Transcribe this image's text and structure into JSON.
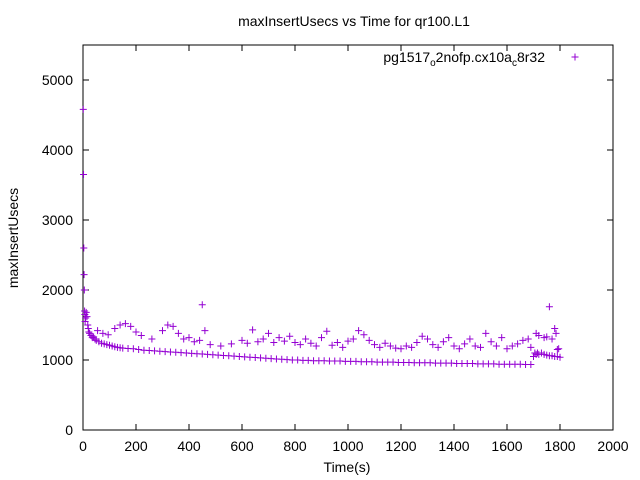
{
  "chart_data": {
    "type": "scatter",
    "title": "maxInsertUsecs vs Time for qr100.L1",
    "xlabel": "Time(s)",
    "ylabel": "maxInsertUsecs",
    "xlim": [
      0,
      2000
    ],
    "ylim": [
      0,
      5500
    ],
    "xticks": [
      0,
      200,
      400,
      600,
      800,
      1000,
      1200,
      1400,
      1600,
      1800,
      2000
    ],
    "yticks": [
      0,
      1000,
      2000,
      3000,
      4000,
      5000
    ],
    "grid": false,
    "legend_position": "top-right",
    "marker": "+",
    "series": [
      {
        "name_parts": {
          "base": "pg1517",
          "sub1": "o",
          "mid": "2nofp.cx10a",
          "sub2": "c",
          "tail": "8r32"
        },
        "color": "#9400d3",
        "points": [
          [
            1,
            4580
          ],
          [
            2,
            3650
          ],
          [
            3,
            2600
          ],
          [
            4,
            2220
          ],
          [
            5,
            2000
          ],
          [
            6,
            1700
          ],
          [
            7,
            1650
          ],
          [
            8,
            1550
          ],
          [
            10,
            1600
          ],
          [
            12,
            1680
          ],
          [
            15,
            1620
          ],
          [
            18,
            1500
          ],
          [
            20,
            1450
          ],
          [
            22,
            1400
          ],
          [
            25,
            1380
          ],
          [
            30,
            1350
          ],
          [
            35,
            1320
          ],
          [
            40,
            1330
          ],
          [
            45,
            1300
          ],
          [
            50,
            1280
          ],
          [
            60,
            1260
          ],
          [
            70,
            1240
          ],
          [
            80,
            1230
          ],
          [
            90,
            1220
          ],
          [
            100,
            1210
          ],
          [
            110,
            1200
          ],
          [
            120,
            1190
          ],
          [
            130,
            1180
          ],
          [
            140,
            1175
          ],
          [
            150,
            1170
          ],
          [
            55,
            1420
          ],
          [
            75,
            1380
          ],
          [
            95,
            1360
          ],
          [
            120,
            1450
          ],
          [
            140,
            1500
          ],
          [
            160,
            1520
          ],
          [
            180,
            1480
          ],
          [
            200,
            1400
          ],
          [
            220,
            1350
          ],
          [
            260,
            1300
          ],
          [
            170,
            1165
          ],
          [
            190,
            1160
          ],
          [
            210,
            1150
          ],
          [
            230,
            1140
          ],
          [
            250,
            1135
          ],
          [
            270,
            1130
          ],
          [
            290,
            1125
          ],
          [
            310,
            1120
          ],
          [
            330,
            1115
          ],
          [
            350,
            1110
          ],
          [
            300,
            1420
          ],
          [
            320,
            1500
          ],
          [
            340,
            1480
          ],
          [
            360,
            1380
          ],
          [
            380,
            1300
          ],
          [
            400,
            1320
          ],
          [
            420,
            1260
          ],
          [
            440,
            1280
          ],
          [
            450,
            1790
          ],
          [
            460,
            1420
          ],
          [
            370,
            1105
          ],
          [
            390,
            1100
          ],
          [
            410,
            1095
          ],
          [
            430,
            1090
          ],
          [
            450,
            1085
          ],
          [
            470,
            1080
          ],
          [
            490,
            1075
          ],
          [
            510,
            1070
          ],
          [
            530,
            1065
          ],
          [
            550,
            1060
          ],
          [
            480,
            1220
          ],
          [
            520,
            1200
          ],
          [
            560,
            1230
          ],
          [
            600,
            1280
          ],
          [
            620,
            1240
          ],
          [
            640,
            1430
          ],
          [
            660,
            1260
          ],
          [
            680,
            1300
          ],
          [
            700,
            1380
          ],
          [
            720,
            1250
          ],
          [
            570,
            1055
          ],
          [
            590,
            1050
          ],
          [
            610,
            1045
          ],
          [
            630,
            1040
          ],
          [
            650,
            1035
          ],
          [
            670,
            1030
          ],
          [
            690,
            1025
          ],
          [
            710,
            1020
          ],
          [
            730,
            1015
          ],
          [
            750,
            1010
          ],
          [
            740,
            1320
          ],
          [
            760,
            1270
          ],
          [
            780,
            1340
          ],
          [
            800,
            1250
          ],
          [
            820,
            1220
          ],
          [
            840,
            1300
          ],
          [
            860,
            1240
          ],
          [
            880,
            1200
          ],
          [
            900,
            1320
          ],
          [
            920,
            1410
          ],
          [
            770,
            1005
          ],
          [
            790,
            1000
          ],
          [
            810,
            1000
          ],
          [
            830,
            995
          ],
          [
            850,
            995
          ],
          [
            870,
            990
          ],
          [
            890,
            990
          ],
          [
            910,
            990
          ],
          [
            930,
            985
          ],
          [
            950,
            985
          ],
          [
            940,
            1210
          ],
          [
            960,
            1250
          ],
          [
            980,
            1180
          ],
          [
            1000,
            1270
          ],
          [
            1020,
            1300
          ],
          [
            1040,
            1420
          ],
          [
            1060,
            1360
          ],
          [
            1080,
            1280
          ],
          [
            1100,
            1220
          ],
          [
            1120,
            1180
          ],
          [
            970,
            985
          ],
          [
            990,
            980
          ],
          [
            1010,
            980
          ],
          [
            1030,
            980
          ],
          [
            1050,
            975
          ],
          [
            1070,
            975
          ],
          [
            1090,
            975
          ],
          [
            1110,
            970
          ],
          [
            1130,
            970
          ],
          [
            1150,
            970
          ],
          [
            1140,
            1240
          ],
          [
            1160,
            1200
          ],
          [
            1180,
            1170
          ],
          [
            1200,
            1160
          ],
          [
            1220,
            1200
          ],
          [
            1240,
            1180
          ],
          [
            1260,
            1250
          ],
          [
            1280,
            1340
          ],
          [
            1300,
            1300
          ],
          [
            1320,
            1220
          ],
          [
            1170,
            970
          ],
          [
            1190,
            965
          ],
          [
            1210,
            965
          ],
          [
            1230,
            965
          ],
          [
            1250,
            960
          ],
          [
            1270,
            960
          ],
          [
            1290,
            960
          ],
          [
            1310,
            960
          ],
          [
            1330,
            955
          ],
          [
            1350,
            955
          ],
          [
            1340,
            1180
          ],
          [
            1360,
            1260
          ],
          [
            1380,
            1320
          ],
          [
            1400,
            1200
          ],
          [
            1420,
            1160
          ],
          [
            1440,
            1230
          ],
          [
            1460,
            1300
          ],
          [
            1480,
            1200
          ],
          [
            1500,
            1180
          ],
          [
            1520,
            1380
          ],
          [
            1370,
            955
          ],
          [
            1390,
            955
          ],
          [
            1410,
            950
          ],
          [
            1430,
            950
          ],
          [
            1450,
            950
          ],
          [
            1470,
            950
          ],
          [
            1490,
            945
          ],
          [
            1510,
            945
          ],
          [
            1530,
            945
          ],
          [
            1550,
            945
          ],
          [
            1540,
            1260
          ],
          [
            1560,
            1200
          ],
          [
            1580,
            1320
          ],
          [
            1600,
            1160
          ],
          [
            1620,
            1200
          ],
          [
            1640,
            1230
          ],
          [
            1660,
            1280
          ],
          [
            1680,
            1300
          ],
          [
            1690,
            1180
          ],
          [
            1570,
            940
          ],
          [
            1590,
            940
          ],
          [
            1610,
            940
          ],
          [
            1630,
            940
          ],
          [
            1650,
            940
          ],
          [
            1670,
            935
          ],
          [
            1690,
            935
          ],
          [
            1700,
            1050
          ],
          [
            1705,
            1100
          ],
          [
            1710,
            1080
          ],
          [
            1715,
            1100
          ],
          [
            1720,
            1080
          ],
          [
            1730,
            1100
          ],
          [
            1740,
            1080
          ],
          [
            1750,
            1070
          ],
          [
            1760,
            1060
          ],
          [
            1770,
            1060
          ],
          [
            1780,
            1050
          ],
          [
            1790,
            1050
          ],
          [
            1800,
            1040
          ],
          [
            1710,
            1380
          ],
          [
            1720,
            1350
          ],
          [
            1740,
            1320
          ],
          [
            1750,
            1330
          ],
          [
            1760,
            1760
          ],
          [
            1770,
            1300
          ],
          [
            1780,
            1450
          ],
          [
            1785,
            1380
          ],
          [
            1790,
            1150
          ],
          [
            1795,
            1160
          ]
        ]
      }
    ]
  }
}
